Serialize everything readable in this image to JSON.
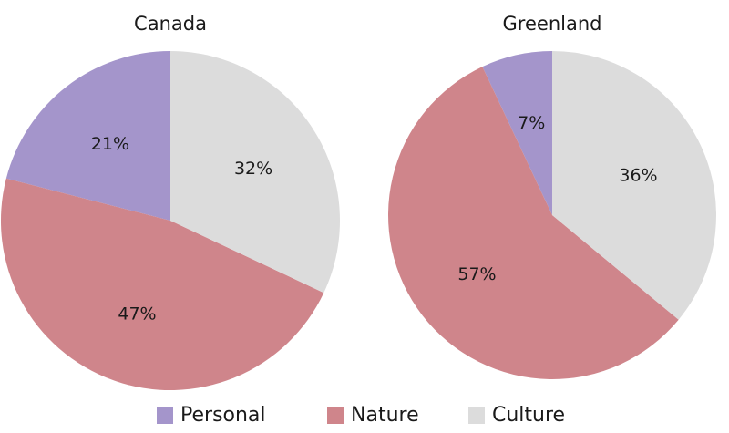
{
  "chart_data": [
    {
      "type": "pie",
      "title": "Canada",
      "categories": [
        "Personal",
        "Nature",
        "Culture"
      ],
      "values": [
        21,
        47,
        32
      ],
      "labels": [
        "21%",
        "47%",
        "32%"
      ]
    },
    {
      "type": "pie",
      "title": "Greenland",
      "categories": [
        "Personal",
        "Nature",
        "Culture"
      ],
      "values": [
        7,
        57,
        36
      ],
      "labels": [
        "7%",
        "57%",
        "36%"
      ]
    }
  ],
  "colors": {
    "Personal": "#a495cb",
    "Nature": "#cf858b",
    "Culture": "#dcdcdc"
  },
  "legend": {
    "items": [
      {
        "label": "Personal",
        "color": "#a495cb"
      },
      {
        "label": "Nature",
        "color": "#cf858b"
      },
      {
        "label": "Culture",
        "color": "#dcdcdc"
      }
    ],
    "position": "bottom"
  }
}
